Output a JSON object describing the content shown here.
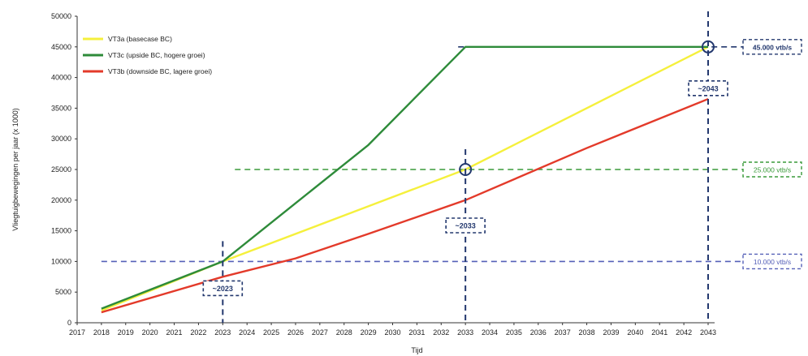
{
  "chart_data": {
    "type": "line",
    "title": "",
    "xlabel": "Tijd",
    "ylabel": "Vliegtuigbewegingen per jaar (x 1000)",
    "xlim": [
      2017,
      2043
    ],
    "ylim": [
      0,
      50000
    ],
    "x_tick_labels": [
      "2017",
      "2018",
      "2019",
      "2020",
      "2021",
      "2022",
      "2023",
      "2024",
      "2025",
      "2026",
      "2027",
      "2028",
      "2029",
      "2030",
      "2031",
      "2032",
      "2033",
      "2034",
      "2035",
      "2036",
      "2037",
      "2038",
      "2039",
      "2040",
      "2041",
      "2042",
      "2043"
    ],
    "y_tick_labels": [
      "0",
      "5000",
      "10000",
      "15000",
      "20000",
      "25000",
      "30000",
      "35000",
      "40000",
      "45000",
      "50000"
    ],
    "grid": false,
    "legend_position": "top-left",
    "series": [
      {
        "name": "VT3a (basecase BC)",
        "color": "#f5f03c",
        "x": [
          2018,
          2023,
          2033,
          2043
        ],
        "y": [
          2000,
          10000,
          25000,
          45000
        ]
      },
      {
        "name": "VT3c (upside BC, hogere groei)",
        "color": "#2e8b3a",
        "x": [
          2018,
          2023,
          2026,
          2029,
          2033,
          2043
        ],
        "y": [
          2300,
          10000,
          19500,
          29000,
          45000,
          45000
        ]
      },
      {
        "name": "VT3b (downside BC, lagere groei)",
        "color": "#e33a2a",
        "x": [
          2018,
          2023,
          2026,
          2029,
          2033,
          2038,
          2043
        ],
        "y": [
          1700,
          7500,
          10500,
          14500,
          20000,
          28500,
          36500
        ]
      }
    ],
    "reference_lines": [
      {
        "label": "10.000 vtb/s",
        "y": 10000,
        "x_start": 2018,
        "color": "#5560b8"
      },
      {
        "label": "25.000 vtb/s",
        "y": 25000,
        "x_start": 2023.5,
        "color": "#3a9a3a"
      },
      {
        "label": "45.000 vtb/s",
        "y": 45000,
        "x_start": 2032.7,
        "color": "#23386e"
      }
    ],
    "annotations": [
      {
        "label": "~2023",
        "x": 2023,
        "y": 10000
      },
      {
        "label": "~2033",
        "x": 2033,
        "y": 25000
      },
      {
        "label": "~2043",
        "x": 2043,
        "y": 45000
      }
    ]
  }
}
